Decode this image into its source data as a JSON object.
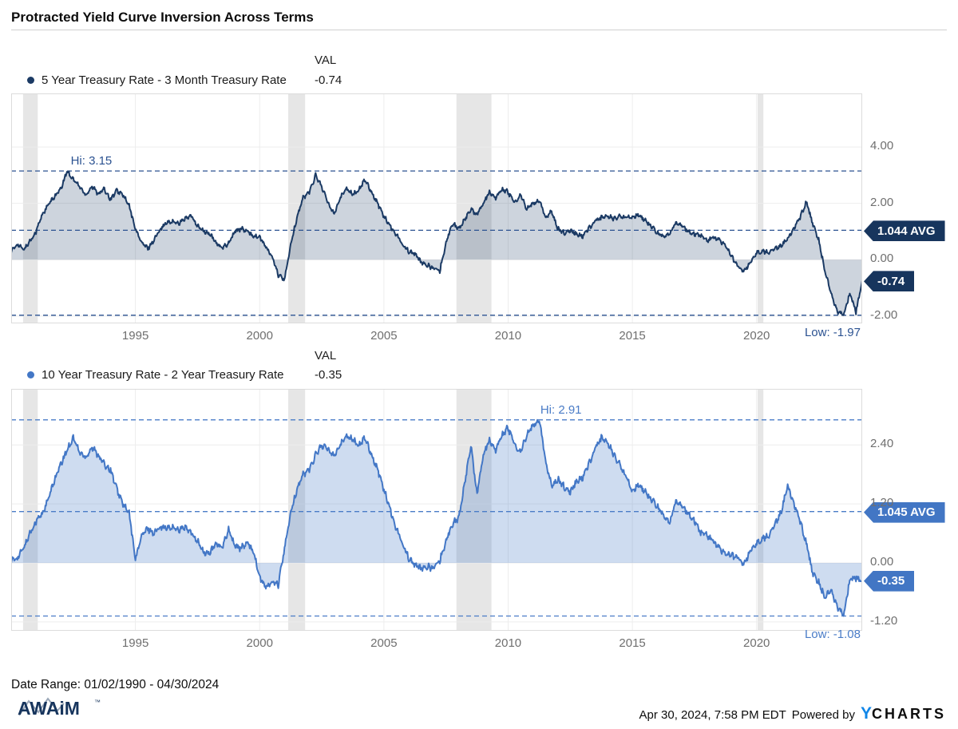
{
  "title": "Protracted Yield Curve Inversion Across Terms",
  "footer": {
    "date_range": "Date Range: 01/02/1990 - 04/30/2024",
    "brand": "AWAiM",
    "brand_tm": "™",
    "timestamp": "Apr 30, 2024, 7:58 PM EDT",
    "powered_by": "Powered by",
    "logo_y": "Y",
    "logo_charts": "CHARTS"
  },
  "chart_data": [
    {
      "type": "area",
      "name": "5 Year Treasury Rate - 3 Month Treasury Rate",
      "val_header": "VAL",
      "current_value": -0.74,
      "current_value_label": "-0.74",
      "hi": {
        "value": 3.15,
        "label": "Hi: 3.15",
        "x_year": 1992.3
      },
      "avg": {
        "value": 1.044,
        "label": "1.044 AVG"
      },
      "low": {
        "value": -1.97,
        "label": "Low: -1.97"
      },
      "last": {
        "value": -0.74,
        "label": "-0.74"
      },
      "xlim": [
        1990,
        2024.25
      ],
      "ylim": [
        -2.26,
        5.9
      ],
      "x_start": 1990,
      "x_step": 0.25,
      "yticks": [
        {
          "v": 4,
          "label": "4.00"
        },
        {
          "v": 2,
          "label": "2.00"
        },
        {
          "v": 0,
          "label": "0.00"
        },
        {
          "v": -2,
          "label": "-2.00"
        }
      ],
      "xticks": [
        {
          "x": 1995,
          "label": "1995"
        },
        {
          "x": 2000,
          "label": "2000"
        },
        {
          "x": 2005,
          "label": "2005"
        },
        {
          "x": 2010,
          "label": "2010"
        },
        {
          "x": 2015,
          "label": "2015"
        },
        {
          "x": 2020,
          "label": "2020"
        }
      ],
      "recessions": [
        [
          1990.48,
          1991.07
        ],
        [
          2001.15,
          2001.83
        ],
        [
          2007.92,
          2009.33
        ],
        [
          2020.04,
          2020.27
        ]
      ],
      "noise": 0.06,
      "values": [
        0.3,
        0.55,
        0.35,
        0.65,
        1.0,
        1.6,
        1.95,
        2.25,
        2.5,
        3.15,
        2.85,
        2.6,
        2.3,
        2.6,
        2.35,
        2.5,
        2.15,
        2.45,
        2.3,
        1.9,
        1.1,
        0.6,
        0.4,
        0.7,
        1.1,
        1.3,
        1.35,
        1.3,
        1.45,
        1.55,
        1.2,
        1.0,
        0.9,
        0.6,
        0.4,
        0.6,
        1.0,
        1.1,
        1.0,
        0.85,
        0.8,
        0.45,
        0.1,
        -0.55,
        -0.7,
        0.5,
        1.5,
        2.2,
        2.4,
        3.0,
        2.6,
        2.0,
        1.65,
        2.2,
        2.55,
        2.3,
        2.5,
        2.85,
        2.4,
        2.0,
        1.55,
        1.2,
        0.9,
        0.55,
        0.3,
        0.2,
        -0.1,
        -0.2,
        -0.3,
        -0.4,
        0.6,
        1.3,
        1.1,
        1.4,
        1.8,
        1.6,
        2.0,
        2.4,
        2.2,
        2.5,
        2.4,
        2.0,
        2.3,
        1.8,
        2.0,
        2.1,
        1.5,
        1.7,
        1.1,
        0.95,
        1.05,
        0.9,
        0.85,
        1.1,
        1.4,
        1.5,
        1.55,
        1.45,
        1.55,
        1.5,
        1.5,
        1.6,
        1.4,
        1.2,
        0.95,
        0.8,
        0.9,
        1.3,
        1.2,
        1.0,
        0.9,
        0.85,
        0.65,
        0.8,
        0.7,
        0.5,
        0.1,
        -0.25,
        -0.4,
        -0.1,
        0.25,
        0.3,
        0.25,
        0.4,
        0.5,
        0.75,
        1.1,
        1.5,
        2.05,
        1.3,
        0.7,
        -0.4,
        -1.2,
        -1.85,
        -1.97,
        -1.2,
        -1.85,
        -0.74
      ],
      "colors": {
        "line": "#1b3a64",
        "fill": "rgba(27,58,100,0.22)",
        "badge": "#17355d",
        "annotation": "#2b5291"
      }
    },
    {
      "type": "area",
      "name": "10 Year Treasury Rate - 2 Year Treasury Rate",
      "val_header": "VAL",
      "current_value": -0.35,
      "current_value_label": "-0.35",
      "hi": {
        "value": 2.91,
        "label": "Hi: 2.91",
        "x_year": 2011.2
      },
      "avg": {
        "value": 1.045,
        "label": "1.045 AVG"
      },
      "low": {
        "value": -1.08,
        "label": "Low: -1.08"
      },
      "last": {
        "value": -0.35,
        "label": "-0.35"
      },
      "xlim": [
        1990,
        2024.25
      ],
      "ylim": [
        -1.38,
        3.54
      ],
      "x_start": 1990,
      "x_step": 0.25,
      "yticks": [
        {
          "v": 2.4,
          "label": "2.40"
        },
        {
          "v": 1.2,
          "label": "1.20"
        },
        {
          "v": 0,
          "label": "0.00"
        },
        {
          "v": -1.2,
          "label": "-1.20"
        }
      ],
      "xticks": [
        {
          "x": 1995,
          "label": "1995"
        },
        {
          "x": 2000,
          "label": "2000"
        },
        {
          "x": 2005,
          "label": "2005"
        },
        {
          "x": 2010,
          "label": "2010"
        },
        {
          "x": 2015,
          "label": "2015"
        },
        {
          "x": 2020,
          "label": "2020"
        }
      ],
      "recessions": [
        [
          1990.48,
          1991.07
        ],
        [
          2001.15,
          2001.83
        ],
        [
          2007.92,
          2009.33
        ],
        [
          2020.04,
          2020.27
        ]
      ],
      "noise": 0.05,
      "values": [
        0.05,
        0.1,
        0.3,
        0.6,
        0.85,
        1.0,
        1.3,
        1.7,
        2.0,
        2.3,
        2.55,
        2.25,
        2.15,
        2.35,
        2.2,
        2.0,
        1.9,
        1.5,
        1.2,
        1.0,
        0.08,
        0.55,
        0.7,
        0.6,
        0.75,
        0.7,
        0.72,
        0.68,
        0.72,
        0.6,
        0.45,
        0.2,
        0.2,
        0.4,
        0.3,
        0.7,
        0.35,
        0.3,
        0.4,
        0.25,
        -0.3,
        -0.5,
        -0.4,
        -0.45,
        0.3,
        1.0,
        1.5,
        1.8,
        1.9,
        2.2,
        2.4,
        2.3,
        2.2,
        2.4,
        2.6,
        2.5,
        2.4,
        2.55,
        2.2,
        1.9,
        1.5,
        1.1,
        0.7,
        0.4,
        0.1,
        -0.05,
        -0.12,
        -0.08,
        -0.1,
        0.05,
        0.45,
        0.8,
        0.9,
        1.6,
        2.4,
        1.4,
        2.2,
        2.5,
        2.3,
        2.6,
        2.75,
        2.4,
        2.25,
        2.6,
        2.8,
        2.91,
        2.1,
        1.55,
        1.7,
        1.55,
        1.45,
        1.65,
        1.75,
        2.0,
        2.35,
        2.55,
        2.45,
        2.2,
        2.0,
        1.75,
        1.45,
        1.6,
        1.45,
        1.3,
        1.15,
        0.95,
        0.8,
        1.25,
        1.15,
        1.0,
        0.85,
        0.6,
        0.55,
        0.45,
        0.3,
        0.18,
        0.15,
        0.1,
        -0.02,
        0.25,
        0.4,
        0.5,
        0.55,
        0.8,
        1.05,
        1.58,
        1.2,
        0.85,
        0.4,
        -0.2,
        -0.4,
        -0.7,
        -0.55,
        -0.9,
        -1.08,
        -0.35,
        -0.3,
        -0.35
      ],
      "colors": {
        "line": "#4377c6",
        "fill": "rgba(67,119,198,0.26)",
        "badge": "#4276c4",
        "annotation": "#4a7cc7"
      }
    }
  ]
}
